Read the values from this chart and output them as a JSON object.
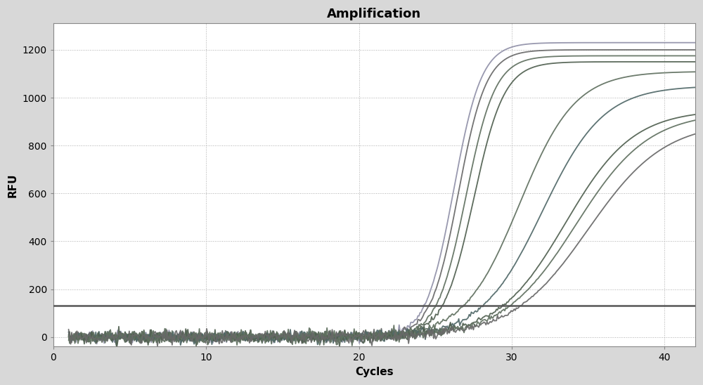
{
  "title": "Amplification",
  "xlabel": "Cycles",
  "ylabel": "RFU",
  "xlim": [
    1,
    42
  ],
  "ylim": [
    -40,
    1310
  ],
  "xticks": [
    0,
    10,
    20,
    30,
    40
  ],
  "yticks": [
    0,
    200,
    400,
    600,
    800,
    1000,
    1200
  ],
  "threshold_y": 130,
  "threshold_color": "#555555",
  "outer_bg": "#d8d8d8",
  "plot_bg_color": "#ffffff",
  "grid_color": "#999999",
  "grid_linestyle": ":",
  "title_fontsize": 13,
  "axis_label_fontsize": 11,
  "tick_fontsize": 10,
  "curves": [
    {
      "L": 1230,
      "k": 1.1,
      "x0": 26.2,
      "color": "#9090a8",
      "lw": 1.3
    },
    {
      "L": 1200,
      "k": 1.1,
      "x0": 26.5,
      "color": "#686868",
      "lw": 1.3
    },
    {
      "L": 1175,
      "k": 1.05,
      "x0": 27.0,
      "color": "#607060",
      "lw": 1.3
    },
    {
      "L": 1150,
      "k": 1.0,
      "x0": 27.5,
      "color": "#506050",
      "lw": 1.3
    },
    {
      "L": 1110,
      "k": 0.55,
      "x0": 30.5,
      "color": "#607060",
      "lw": 1.3
    },
    {
      "L": 1050,
      "k": 0.5,
      "x0": 32.0,
      "color": "#506868",
      "lw": 1.3
    },
    {
      "L": 950,
      "k": 0.45,
      "x0": 33.5,
      "color": "#506050",
      "lw": 1.3
    },
    {
      "L": 940,
      "k": 0.42,
      "x0": 34.2,
      "color": "#607060",
      "lw": 1.3
    },
    {
      "L": 900,
      "k": 0.4,
      "x0": 35.0,
      "color": "#686868",
      "lw": 1.3
    }
  ],
  "noise_amplitude": 5,
  "noise_seed": 7
}
